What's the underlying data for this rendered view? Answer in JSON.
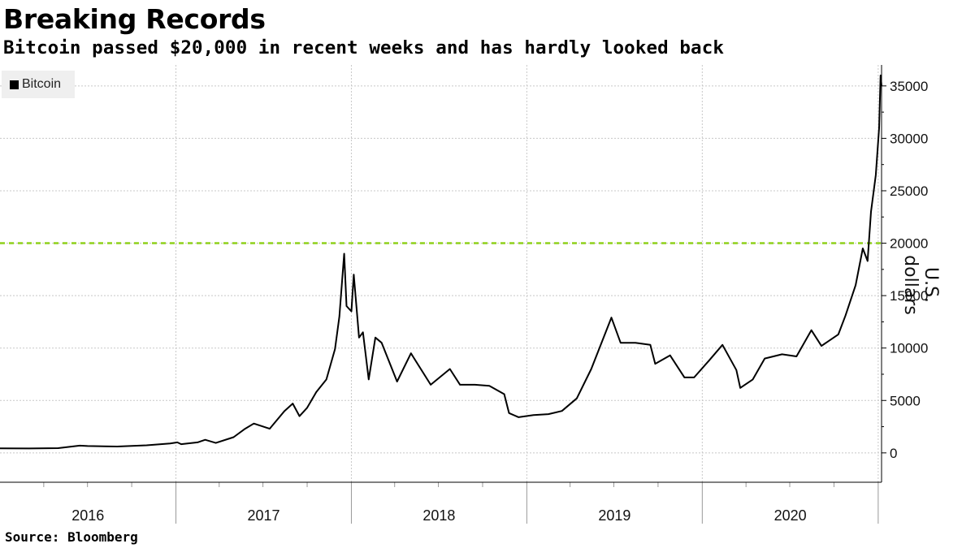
{
  "title": "Breaking Records",
  "subtitle": "Bitcoin passed $20,000 in recent weeks and has hardly looked back",
  "source": "Source: Bloomberg",
  "chart_data": {
    "type": "line",
    "ylabel": "U.S. dollars",
    "ylim": [
      -2800,
      37000
    ],
    "yticks": [
      0,
      5000,
      10000,
      15000,
      20000,
      25000,
      30000,
      35000
    ],
    "ytick_labels": [
      "0",
      "5000",
      "10000",
      "15000",
      "20000",
      "25000",
      "30000",
      "35000"
    ],
    "x_range": [
      "2016-01-01",
      "2021-01-08"
    ],
    "xtick_labels": [
      "2016",
      "2017",
      "2018",
      "2019",
      "2020"
    ],
    "grid": true,
    "legend": "top-left",
    "reference_line": {
      "y": 20000,
      "color": "#8fd11c",
      "style": "dashed"
    },
    "series": [
      {
        "name": "Bitcoin",
        "color": "#000000",
        "x": [
          "2016-01-01",
          "2016-03-01",
          "2016-05-01",
          "2016-06-15",
          "2016-07-01",
          "2016-09-01",
          "2016-11-01",
          "2016-12-20",
          "2017-01-04",
          "2017-01-12",
          "2017-02-15",
          "2017-03-03",
          "2017-03-25",
          "2017-05-01",
          "2017-05-25",
          "2017-06-12",
          "2017-07-15",
          "2017-08-15",
          "2017-09-01",
          "2017-09-15",
          "2017-10-01",
          "2017-10-20",
          "2017-11-10",
          "2017-11-28",
          "2017-12-07",
          "2017-12-17",
          "2017-12-22",
          "2018-01-01",
          "2018-01-06",
          "2018-01-17",
          "2018-01-25",
          "2018-02-06",
          "2018-02-20",
          "2018-03-05",
          "2018-04-06",
          "2018-05-05",
          "2018-06-15",
          "2018-07-25",
          "2018-08-15",
          "2018-09-15",
          "2018-10-15",
          "2018-11-15",
          "2018-11-25",
          "2018-12-15",
          "2019-01-15",
          "2019-02-15",
          "2019-03-15",
          "2019-04-15",
          "2019-05-15",
          "2019-06-26",
          "2019-07-15",
          "2019-08-15",
          "2019-09-15",
          "2019-09-25",
          "2019-10-26",
          "2019-11-25",
          "2019-12-15",
          "2020-01-15",
          "2020-02-12",
          "2020-03-12",
          "2020-03-20",
          "2020-04-15",
          "2020-05-10",
          "2020-06-15",
          "2020-07-15",
          "2020-08-15",
          "2020-09-05",
          "2020-10-10",
          "2020-10-25",
          "2020-11-15",
          "2020-11-30",
          "2020-12-10",
          "2020-12-17",
          "2020-12-27",
          "2021-01-03",
          "2021-01-06",
          "2021-01-08"
        ],
        "y": [
          430,
          420,
          450,
          690,
          650,
          610,
          720,
          890,
          1000,
          830,
          1000,
          1250,
          950,
          1500,
          2300,
          2800,
          2300,
          4000,
          4700,
          3500,
          4300,
          5800,
          7000,
          9900,
          13000,
          19000,
          14000,
          13500,
          17000,
          11000,
          11500,
          7000,
          11000,
          10500,
          6800,
          9500,
          6500,
          8000,
          6500,
          6500,
          6400,
          5600,
          3800,
          3400,
          3600,
          3700,
          4000,
          5200,
          8000,
          12900,
          10500,
          10500,
          10300,
          8500,
          9300,
          7200,
          7200,
          8800,
          10300,
          7900,
          6200,
          7000,
          9000,
          9400,
          9200,
          11700,
          10200,
          11300,
          13100,
          16000,
          19500,
          18300,
          23000,
          26500,
          31000,
          36000,
          35000
        ]
      }
    ]
  }
}
